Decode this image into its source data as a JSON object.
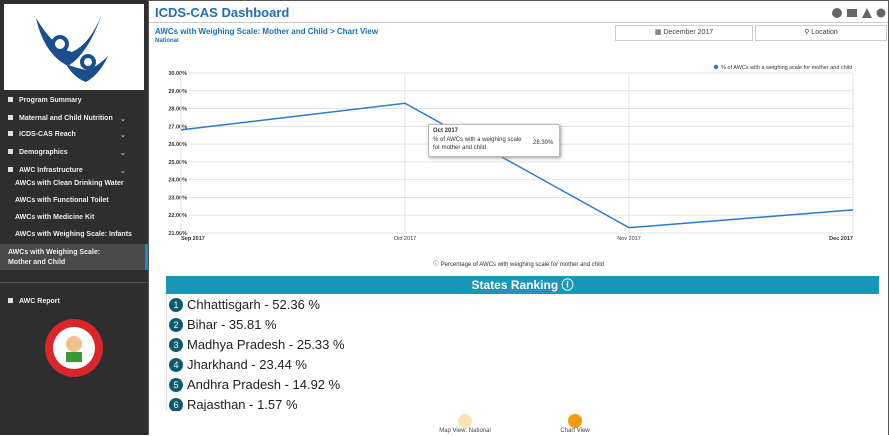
{
  "header": {
    "title": "ICDS-CAS Dashboard"
  },
  "sidebar": {
    "items": [
      "Program Summary",
      "Maternal and Child Nutrition",
      "ICDS-CAS Reach",
      "Demographics",
      "AWC Infrastructure"
    ],
    "subitems": [
      "AWCs with Clean Drinking Water",
      "AWCs with Functional Toilet",
      "AWCs with Medicine Kit",
      "AWCs with Weighing Scale: Infants",
      "AWCs with Weighing Scale: Mother and Child"
    ],
    "report": "AWC Report"
  },
  "page": {
    "title": "AWCs with Weighing Scale: Mother and Child > Chart View",
    "subtitle": "National",
    "date_button": "December 2017",
    "location_button": "Location"
  },
  "chart_data": {
    "type": "line",
    "categories": [
      "Sep 2017",
      "Oct 2017",
      "Nov 2017",
      "Dec 2017"
    ],
    "series": [
      {
        "name": "% of AWCs with a weighing scale for mother and child",
        "color": "#2a7ad2",
        "values": [
          26.8,
          28.3,
          21.3,
          22.3
        ]
      }
    ],
    "ylim": [
      21,
      30
    ],
    "yticks": [
      {
        "value": 21,
        "label": "21.00%"
      },
      {
        "value": 22,
        "label": "22.00%"
      },
      {
        "value": 23,
        "label": "23.00%"
      },
      {
        "value": 24,
        "label": "24.00%"
      },
      {
        "value": 25,
        "label": "25.00%"
      },
      {
        "value": 26,
        "label": "26.00%"
      },
      {
        "value": 27,
        "label": "27.00%"
      },
      {
        "value": 28,
        "label": "28.00%"
      },
      {
        "value": 29,
        "label": "29.00%"
      },
      {
        "value": 30,
        "label": "30.00%"
      }
    ],
    "grid": true,
    "legend": "top-right",
    "caption": "Percentage of AWCs with weighing scale for mother and child",
    "tooltip": {
      "title": "Oct 2017",
      "text": "% of AWCs with a weighing scale for mother and child",
      "value": "28.30%"
    }
  },
  "ranking": {
    "title": "States Ranking",
    "rows": [
      [
        "1",
        "Chhattisgarh - 52.36 %"
      ],
      [
        "2",
        "Bihar - 35.81 %"
      ],
      [
        "3",
        "Madhya Pradesh - 25.33 %"
      ],
      [
        "4",
        "Jharkhand - 23.44 %"
      ],
      [
        "5",
        "Andhra Pradesh - 14.92 %"
      ],
      [
        "6",
        "Rajasthan - 1.57 %"
      ]
    ]
  },
  "views": [
    "Map View: National",
    "Chart View"
  ]
}
